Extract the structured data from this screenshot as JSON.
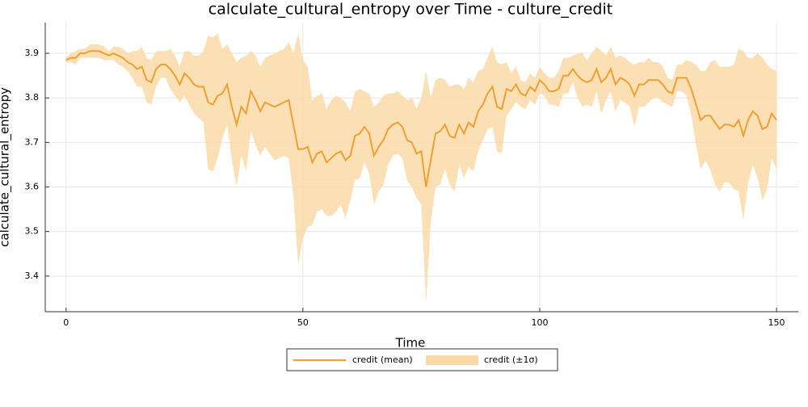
{
  "chart_data": {
    "type": "line",
    "title": "calculate_cultural_entropy over Time - culture_credit",
    "x_label": "Time",
    "y_label": "calculate_cultural_entropy",
    "x": [
      0,
      1,
      2,
      3,
      4,
      5,
      6,
      7,
      8,
      9,
      10,
      11,
      12,
      13,
      14,
      15,
      16,
      17,
      18,
      19,
      20,
      21,
      22,
      23,
      24,
      25,
      26,
      27,
      28,
      29,
      30,
      31,
      32,
      33,
      34,
      35,
      36,
      37,
      38,
      39,
      40,
      41,
      42,
      43,
      44,
      45,
      46,
      47,
      48,
      49,
      50,
      51,
      52,
      53,
      54,
      55,
      56,
      57,
      58,
      59,
      60,
      61,
      62,
      63,
      64,
      65,
      66,
      67,
      68,
      69,
      70,
      71,
      72,
      73,
      74,
      75,
      76,
      77,
      78,
      79,
      80,
      81,
      82,
      83,
      84,
      85,
      86,
      87,
      88,
      89,
      90,
      91,
      92,
      93,
      94,
      95,
      96,
      97,
      98,
      99,
      100,
      101,
      102,
      103,
      104,
      105,
      106,
      107,
      108,
      109,
      110,
      111,
      112,
      113,
      114,
      115,
      116,
      117,
      118,
      119,
      120,
      121,
      122,
      123,
      124,
      125,
      126,
      127,
      128,
      129,
      130,
      131,
      132,
      133,
      134,
      135,
      136,
      137,
      138,
      139,
      140,
      141,
      142,
      143,
      144,
      145,
      146,
      147,
      148,
      149,
      150
    ],
    "series": [
      {
        "name": "credit (mean)",
        "color": "#f0a030",
        "values": [
          3.885,
          3.89,
          3.89,
          3.9,
          3.9,
          3.905,
          3.905,
          3.905,
          3.9,
          3.895,
          3.9,
          3.895,
          3.89,
          3.88,
          3.875,
          3.865,
          3.87,
          3.84,
          3.835,
          3.865,
          3.875,
          3.875,
          3.865,
          3.85,
          3.83,
          3.855,
          3.845,
          3.83,
          3.825,
          3.825,
          3.79,
          3.785,
          3.805,
          3.81,
          3.83,
          3.78,
          3.74,
          3.78,
          3.765,
          3.815,
          3.795,
          3.77,
          3.79,
          3.785,
          3.78,
          3.785,
          3.79,
          3.795,
          3.74,
          3.685,
          3.685,
          3.69,
          3.655,
          3.675,
          3.68,
          3.655,
          3.665,
          3.675,
          3.68,
          3.66,
          3.67,
          3.715,
          3.72,
          3.735,
          3.72,
          3.67,
          3.69,
          3.705,
          3.73,
          3.74,
          3.745,
          3.735,
          3.705,
          3.7,
          3.675,
          3.68,
          3.6,
          3.66,
          3.72,
          3.725,
          3.74,
          3.715,
          3.71,
          3.74,
          3.72,
          3.745,
          3.735,
          3.77,
          3.785,
          3.81,
          3.825,
          3.78,
          3.775,
          3.82,
          3.815,
          3.83,
          3.81,
          3.805,
          3.825,
          3.815,
          3.84,
          3.83,
          3.815,
          3.815,
          3.82,
          3.85,
          3.85,
          3.865,
          3.85,
          3.84,
          3.835,
          3.84,
          3.865,
          3.835,
          3.845,
          3.865,
          3.83,
          3.845,
          3.84,
          3.83,
          3.805,
          3.83,
          3.83,
          3.84,
          3.84,
          3.84,
          3.83,
          3.815,
          3.81,
          3.845,
          3.845,
          3.845,
          3.82,
          3.785,
          3.75,
          3.76,
          3.76,
          3.745,
          3.73,
          3.74,
          3.74,
          3.735,
          3.75,
          3.715,
          3.75,
          3.77,
          3.76,
          3.73,
          3.735,
          3.765,
          3.75
        ]
      },
      {
        "name": "credit (±1σ)",
        "color": "#fad9a8",
        "values": [
          0.005,
          0.01,
          0.015,
          0.01,
          0.01,
          0.015,
          0.015,
          0.015,
          0.015,
          0.01,
          0.015,
          0.02,
          0.02,
          0.02,
          0.03,
          0.04,
          0.045,
          0.05,
          0.05,
          0.04,
          0.03,
          0.03,
          0.045,
          0.045,
          0.04,
          0.05,
          0.06,
          0.065,
          0.07,
          0.08,
          0.15,
          0.15,
          0.14,
          0.1,
          0.09,
          0.12,
          0.14,
          0.11,
          0.13,
          0.09,
          0.1,
          0.1,
          0.1,
          0.11,
          0.12,
          0.12,
          0.12,
          0.13,
          0.16,
          0.26,
          0.2,
          0.18,
          0.14,
          0.13,
          0.13,
          0.12,
          0.13,
          0.13,
          0.12,
          0.13,
          0.1,
          0.1,
          0.1,
          0.08,
          0.09,
          0.11,
          0.1,
          0.1,
          0.08,
          0.07,
          0.07,
          0.07,
          0.09,
          0.1,
          0.1,
          0.12,
          0.26,
          0.14,
          0.12,
          0.12,
          0.1,
          0.11,
          0.12,
          0.09,
          0.1,
          0.1,
          0.1,
          0.09,
          0.08,
          0.08,
          0.09,
          0.1,
          0.1,
          0.06,
          0.04,
          0.04,
          0.03,
          0.03,
          0.03,
          0.03,
          0.03,
          0.025,
          0.03,
          0.03,
          0.04,
          0.04,
          0.04,
          0.03,
          0.05,
          0.06,
          0.05,
          0.06,
          0.05,
          0.07,
          0.05,
          0.05,
          0.06,
          0.05,
          0.05,
          0.05,
          0.07,
          0.05,
          0.05,
          0.05,
          0.04,
          0.04,
          0.04,
          0.03,
          0.03,
          0.03,
          0.03,
          0.04,
          0.06,
          0.09,
          0.11,
          0.1,
          0.12,
          0.14,
          0.14,
          0.13,
          0.13,
          0.14,
          0.16,
          0.19,
          0.14,
          0.12,
          0.14,
          0.16,
          0.14,
          0.1,
          0.11
        ]
      }
    ],
    "xlim": [
      -4.4,
      154.6
    ],
    "ylim": [
      3.32,
      3.969
    ],
    "xticks": [
      0,
      50,
      100,
      150
    ],
    "yticks": [
      3.4,
      3.5,
      3.6,
      3.7,
      3.8,
      3.9
    ],
    "grid": true,
    "legend": "bottom"
  }
}
